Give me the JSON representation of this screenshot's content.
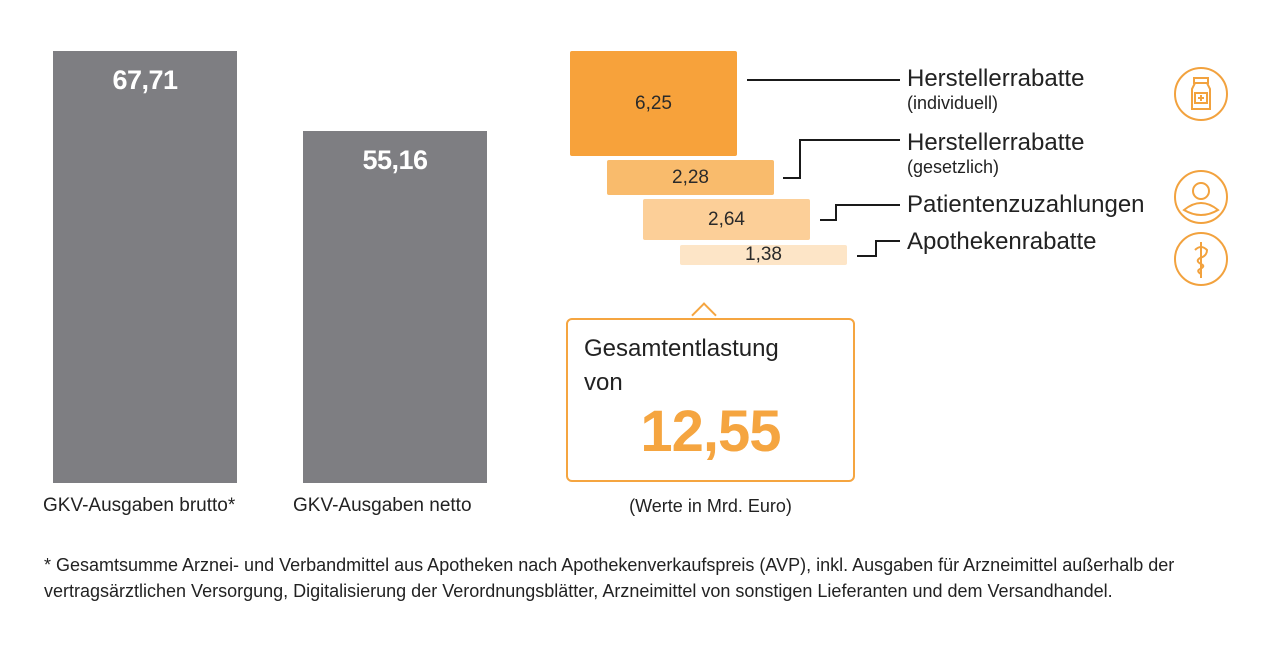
{
  "chart_data": {
    "type": "bar",
    "categories": [
      "GKV-Ausgaben brutto*",
      "GKV-Ausgaben netto"
    ],
    "values": [
      67.71,
      55.16
    ],
    "value_labels": [
      "67,71",
      "55,16"
    ],
    "breakdown": {
      "items": [
        {
          "label": "Herstellerrabatte",
          "sublabel": "(individuell)",
          "value": 6.25,
          "value_label": "6,25",
          "color": "#f7a23b",
          "icon": "medicine-bottle-icon"
        },
        {
          "label": "Herstellerrabatte",
          "sublabel": "(gesetzlich)",
          "value": 2.28,
          "value_label": "2,28",
          "color": "#f9bb6c",
          "icon": ""
        },
        {
          "label": "Patientenzuzahlungen",
          "sublabel": "",
          "value": 2.64,
          "value_label": "2,64",
          "color": "#fccf98",
          "icon": "person-icon"
        },
        {
          "label": "Apothekenrabatte",
          "sublabel": "",
          "value": 1.38,
          "value_label": "1,38",
          "color": "#fde5c7",
          "icon": "caduceus-icon"
        }
      ],
      "total_title": "Gesamtentlastung",
      "total_von": "von",
      "total_value": "12,55",
      "unit_note": "(Werte in Mrd. Euro)"
    },
    "bar_color": "#7e7e82",
    "accent": "#f5a540",
    "footnote": "* Gesamtsumme Arznei- und Verbandmittel aus Apotheken nach Apothekenverkaufspreis (AVP), inkl. Ausgaben für Arzneimittel außerhalb der vertragsärztlichen Versorgung, Digitalisierung der Verordnungsblätter, Arzneimittel von sonstigen Lieferanten und dem Versandhandel."
  }
}
